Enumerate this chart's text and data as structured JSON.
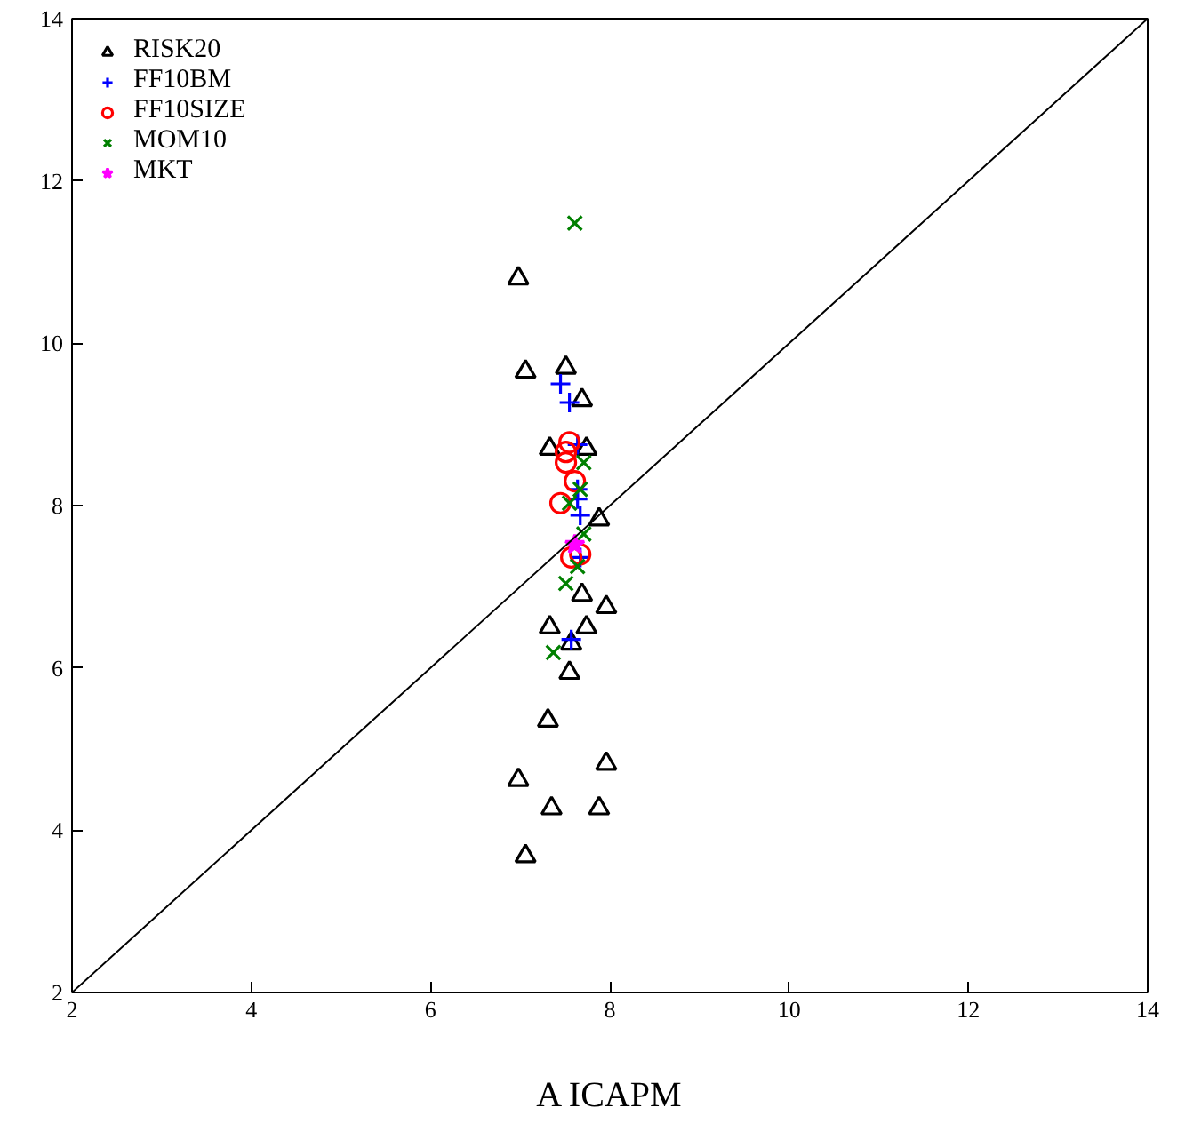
{
  "chart_data": {
    "type": "scatter",
    "xlabel": "A ICAPM",
    "xlim": [
      2,
      14
    ],
    "ylim": [
      2,
      14
    ],
    "xticks": [
      2,
      4,
      6,
      8,
      10,
      12,
      14
    ],
    "yticks": [
      2,
      4,
      6,
      8,
      10,
      12,
      14
    ],
    "grid": false,
    "legend": "top left",
    "series": [
      {
        "name": "RISK20",
        "color": "#000000",
        "marker": "triangle",
        "x": [
          6.98,
          7.06,
          7.51,
          7.69,
          7.33,
          7.74,
          7.88,
          7.69,
          7.96,
          7.33,
          7.74,
          7.57,
          7.55,
          7.31,
          6.98,
          7.96,
          7.35,
          7.88,
          7.06
        ],
        "values": [
          10.8,
          9.65,
          9.7,
          9.3,
          8.7,
          8.7,
          7.83,
          6.9,
          6.75,
          6.5,
          6.5,
          6.3,
          5.94,
          5.35,
          4.62,
          4.82,
          4.27,
          4.27,
          3.68
        ]
      },
      {
        "name": "FF10BM",
        "color": "#0000ff",
        "marker": "cross",
        "x": [
          7.45,
          7.55,
          7.64,
          7.64,
          7.64,
          7.67,
          7.67,
          7.57
        ],
        "values": [
          9.5,
          9.27,
          8.75,
          8.2,
          8.08,
          7.88,
          7.36,
          6.35
        ]
      },
      {
        "name": "FF10SIZE",
        "color": "#ff0000",
        "marker": "circle",
        "x": [
          7.55,
          7.51,
          7.51,
          7.61,
          7.45,
          7.57,
          7.67
        ],
        "values": [
          8.78,
          8.66,
          8.53,
          8.3,
          8.03,
          7.36,
          7.4
        ]
      },
      {
        "name": "MOM10",
        "color": "#008000",
        "marker": "x",
        "x": [
          7.61,
          7.71,
          7.67,
          7.55,
          7.71,
          7.64,
          7.51,
          7.37
        ],
        "values": [
          11.48,
          8.53,
          8.2,
          8.03,
          7.65,
          7.25,
          7.04,
          6.19
        ]
      },
      {
        "name": "MKT",
        "color": "#ff00ff",
        "marker": "star",
        "x": [
          7.61
        ],
        "values": [
          7.52
        ]
      },
      {
        "type": "line",
        "color": "#000000",
        "x": [
          2,
          14
        ],
        "values": [
          2,
          14
        ]
      }
    ]
  }
}
